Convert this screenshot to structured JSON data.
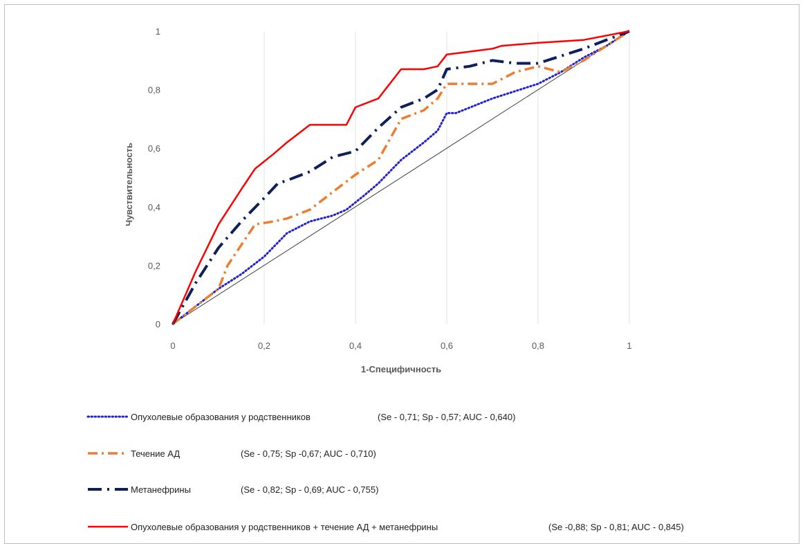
{
  "chart_data": {
    "type": "line",
    "xlabel": "1-Специфичность",
    "ylabel": "Чувствительность",
    "xlim": [
      0,
      1
    ],
    "ylim": [
      0,
      1
    ],
    "xticks": [
      0,
      0.2,
      0.4,
      0.6,
      0.8,
      1
    ],
    "yticks": [
      0,
      0.2,
      0.4,
      0.6,
      0.8,
      1
    ],
    "xtick_labels": [
      "0",
      "0,2",
      "0,4",
      "0,6",
      "0,8",
      "1"
    ],
    "ytick_labels": [
      "0",
      "0,2",
      "0,4",
      "0,6",
      "0,8",
      "1"
    ],
    "grid": "vertical",
    "legend_position": "bottom",
    "reference_line": {
      "x": [
        0,
        1
      ],
      "y": [
        0,
        1
      ],
      "color": "#404040"
    },
    "series": [
      {
        "name": "Опухолевые образования у родственников",
        "legend_name": "Опухолевые образования у родственников",
        "legend_stats": "(Se - 0,71; Sp - 0,57; AUC - 0,640)",
        "color": "#1f1fd6",
        "style": "dotted",
        "x": [
          0,
          0.05,
          0.1,
          0.15,
          0.2,
          0.25,
          0.3,
          0.35,
          0.38,
          0.42,
          0.45,
          0.5,
          0.55,
          0.58,
          0.6,
          0.62,
          0.7,
          0.8,
          0.85,
          0.9,
          0.95,
          1
        ],
        "y": [
          0,
          0.06,
          0.12,
          0.17,
          0.23,
          0.31,
          0.35,
          0.37,
          0.39,
          0.44,
          0.48,
          0.56,
          0.62,
          0.66,
          0.72,
          0.72,
          0.77,
          0.82,
          0.86,
          0.91,
          0.95,
          1
        ]
      },
      {
        "name": "Течение АД",
        "legend_name": "Течение АД",
        "legend_stats": "(Se - 0,75; Sp -0,67; AUC - 0,710)",
        "color": "#ed7d31",
        "style": "dashdot",
        "x": [
          0,
          0.05,
          0.1,
          0.12,
          0.15,
          0.18,
          0.22,
          0.25,
          0.3,
          0.35,
          0.4,
          0.45,
          0.5,
          0.55,
          0.58,
          0.6,
          0.63,
          0.7,
          0.75,
          0.8,
          0.85,
          0.9,
          0.95,
          1
        ],
        "y": [
          0,
          0.06,
          0.12,
          0.2,
          0.27,
          0.34,
          0.35,
          0.36,
          0.39,
          0.45,
          0.51,
          0.56,
          0.7,
          0.73,
          0.77,
          0.82,
          0.82,
          0.82,
          0.86,
          0.88,
          0.86,
          0.9,
          0.95,
          1
        ]
      },
      {
        "name": "Метанефрины",
        "legend_name": "Метанефрины",
        "legend_stats": "(Se - 0,82; Sp - 0,69; AUC - 0,755)",
        "color": "#0d1f5c",
        "style": "longdashdot",
        "x": [
          0,
          0.05,
          0.1,
          0.15,
          0.2,
          0.23,
          0.25,
          0.3,
          0.35,
          0.4,
          0.45,
          0.5,
          0.55,
          0.58,
          0.6,
          0.65,
          0.7,
          0.75,
          0.8,
          0.9,
          1
        ],
        "y": [
          0,
          0.14,
          0.26,
          0.35,
          0.43,
          0.48,
          0.49,
          0.52,
          0.57,
          0.59,
          0.67,
          0.74,
          0.77,
          0.8,
          0.87,
          0.88,
          0.9,
          0.89,
          0.89,
          0.94,
          1
        ]
      },
      {
        "name": "Опухолевые образования у родственников + течение АД + метанефрины",
        "legend_name": "Опухолевые образования у родственников + течение АД + метанефрины",
        "legend_stats": "(Se -0,88; Sp - 0,81; AUC - 0,845)",
        "color": "#ff0000",
        "style": "solid",
        "x": [
          0,
          0.05,
          0.1,
          0.15,
          0.18,
          0.22,
          0.25,
          0.3,
          0.35,
          0.38,
          0.4,
          0.45,
          0.5,
          0.55,
          0.58,
          0.6,
          0.65,
          0.7,
          0.72,
          0.8,
          0.9,
          1
        ],
        "y": [
          0,
          0.18,
          0.34,
          0.46,
          0.53,
          0.58,
          0.62,
          0.68,
          0.68,
          0.68,
          0.74,
          0.77,
          0.87,
          0.87,
          0.88,
          0.92,
          0.93,
          0.94,
          0.95,
          0.96,
          0.97,
          1
        ]
      }
    ]
  }
}
